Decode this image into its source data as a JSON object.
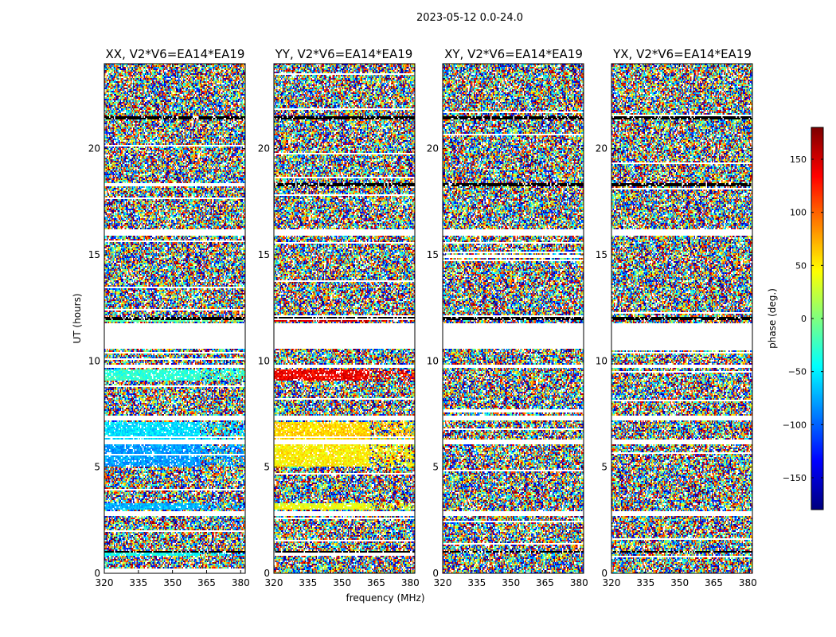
{
  "figure": {
    "title": "2023-05-12 0.0-24.0"
  },
  "chart_data": {
    "type": "heatmap",
    "title": "2023-05-12 0.0-24.0",
    "xlabel": "frequency (MHz)",
    "ylabel": "UT (hours)",
    "xlim": [
      320,
      382
    ],
    "ylim": [
      0,
      24
    ],
    "xticks": [
      320,
      335,
      350,
      365,
      380
    ],
    "yticks": [
      0,
      5,
      10,
      15,
      20
    ],
    "panels": [
      {
        "title": "XX, V2*V6=EA14*EA19",
        "pol": "XX"
      },
      {
        "title": "YY, V2*V6=EA14*EA19",
        "pol": "YY"
      },
      {
        "title": "XY, V2*V6=EA14*EA19",
        "pol": "XY"
      },
      {
        "title": "YX, V2*V6=EA14*EA19",
        "pol": "YX"
      }
    ],
    "colorbar": {
      "label": "phase (deg.)",
      "range": [
        -180,
        180
      ],
      "ticks": [
        -150,
        -100,
        -50,
        0,
        50,
        100,
        150
      ],
      "tick_labels": [
        "−150",
        "−100",
        "−50",
        "0",
        "50",
        "100",
        "150"
      ],
      "colormap": "jet"
    },
    "blank_ut_bands": [
      [
        10.6,
        11.8
      ],
      [
        6.1,
        6.3
      ],
      [
        7.2,
        7.4
      ],
      [
        2.7,
        2.9
      ],
      [
        15.9,
        16.2
      ],
      [
        9.7,
        9.8
      ]
    ],
    "dark_ut_bands": [
      [
        21.4,
        21.55
      ],
      [
        18.2,
        18.35
      ],
      [
        12.0,
        12.1
      ],
      [
        11.95,
        12.0
      ],
      [
        0.95,
        1.05
      ]
    ],
    "coherent_ut_bands": [
      {
        "ut": [
          5.0,
          6.1
        ],
        "phase": {
          "XX": -80,
          "YY": 50,
          "XY": null,
          "YX": null
        }
      },
      {
        "ut": [
          6.3,
          7.1
        ],
        "phase": {
          "XX": -55,
          "YY": 60,
          "XY": null,
          "YX": null
        }
      },
      {
        "ut": [
          9.1,
          9.6
        ],
        "phase": {
          "XX": -30,
          "YY": 140,
          "XY": null,
          "YX": null
        }
      },
      {
        "ut": [
          11.85,
          12.0
        ],
        "phase": {
          "XX": -10,
          "YY": 150,
          "XY": null,
          "YX": null
        }
      },
      {
        "ut": [
          0.8,
          1.0
        ],
        "phase": {
          "XX": -40,
          "YY": 80,
          "XY": null,
          "YX": null
        }
      },
      {
        "ut": [
          3.0,
          3.3
        ],
        "phase": {
          "XX": -70,
          "YY": 40,
          "XY": null,
          "YX": null
        }
      }
    ]
  }
}
